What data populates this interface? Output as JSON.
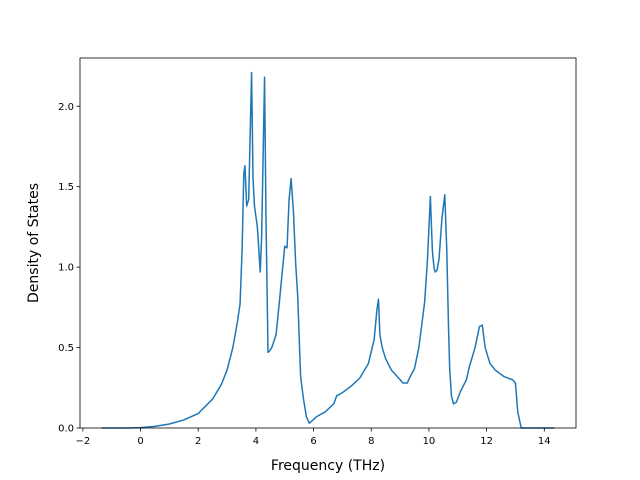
{
  "chart_data": {
    "type": "line",
    "title": "",
    "xlabel": "Frequency (THz)",
    "ylabel": "Density of States",
    "xlim": [
      -2.1,
      15.1
    ],
    "ylim": [
      0.0,
      2.3
    ],
    "xticks": [
      -2,
      0,
      2,
      4,
      6,
      8,
      10,
      12,
      14
    ],
    "xtick_labels": [
      "−2",
      "0",
      "2",
      "4",
      "6",
      "8",
      "10",
      "12",
      "14"
    ],
    "yticks": [
      0.0,
      0.5,
      1.0,
      1.5,
      2.0
    ],
    "ytick_labels": [
      "0.0",
      "0.5",
      "1.0",
      "1.5",
      "2.0"
    ],
    "grid": false,
    "legend": "none",
    "series": [
      {
        "color": "#1f77b4",
        "x": [
          -1.35,
          -0.5,
          0.0,
          0.5,
          1.0,
          1.5,
          2.0,
          2.5,
          2.8,
          3.0,
          3.2,
          3.35,
          3.45,
          3.52,
          3.58,
          3.62,
          3.68,
          3.75,
          3.85,
          3.9,
          3.95,
          4.05,
          4.15,
          4.2,
          4.3,
          4.35,
          4.42,
          4.48,
          4.55,
          4.7,
          4.85,
          5.0,
          5.08,
          5.15,
          5.22,
          5.3,
          5.38,
          5.45,
          5.55,
          5.65,
          5.75,
          5.85,
          5.98,
          6.1,
          6.4,
          6.7,
          6.8,
          7.0,
          7.3,
          7.6,
          7.9,
          8.1,
          8.2,
          8.25,
          8.3,
          8.38,
          8.5,
          8.7,
          8.9,
          9.1,
          9.25,
          9.35,
          9.5,
          9.65,
          9.75,
          9.85,
          9.95,
          10.05,
          10.12,
          10.18,
          10.22,
          10.28,
          10.35,
          10.45,
          10.55,
          10.62,
          10.68,
          10.72,
          10.78,
          10.85,
          10.95,
          11.1,
          11.3,
          11.4,
          11.6,
          11.75,
          11.85,
          11.95,
          12.05,
          12.12,
          12.3,
          12.6,
          12.9,
          13.0,
          13.08,
          13.2,
          13.5,
          14.0,
          14.35
        ],
        "y": [
          0.0,
          0.0,
          0.002,
          0.01,
          0.025,
          0.05,
          0.09,
          0.18,
          0.27,
          0.36,
          0.5,
          0.65,
          0.77,
          1.1,
          1.58,
          1.63,
          1.38,
          1.42,
          2.21,
          1.55,
          1.38,
          1.25,
          0.97,
          1.2,
          2.18,
          1.3,
          0.47,
          0.48,
          0.5,
          0.58,
          0.85,
          1.13,
          1.12,
          1.42,
          1.55,
          1.35,
          1.02,
          0.82,
          0.32,
          0.18,
          0.07,
          0.03,
          0.05,
          0.07,
          0.1,
          0.15,
          0.2,
          0.22,
          0.26,
          0.31,
          0.4,
          0.55,
          0.74,
          0.8,
          0.58,
          0.5,
          0.43,
          0.36,
          0.32,
          0.28,
          0.28,
          0.32,
          0.37,
          0.5,
          0.64,
          0.78,
          1.05,
          1.44,
          1.1,
          0.99,
          0.97,
          0.98,
          1.05,
          1.3,
          1.45,
          1.1,
          0.62,
          0.37,
          0.2,
          0.15,
          0.16,
          0.23,
          0.3,
          0.38,
          0.5,
          0.63,
          0.64,
          0.5,
          0.44,
          0.4,
          0.36,
          0.32,
          0.3,
          0.28,
          0.1,
          0.0,
          0.0,
          0.0,
          0.0
        ]
      }
    ]
  }
}
